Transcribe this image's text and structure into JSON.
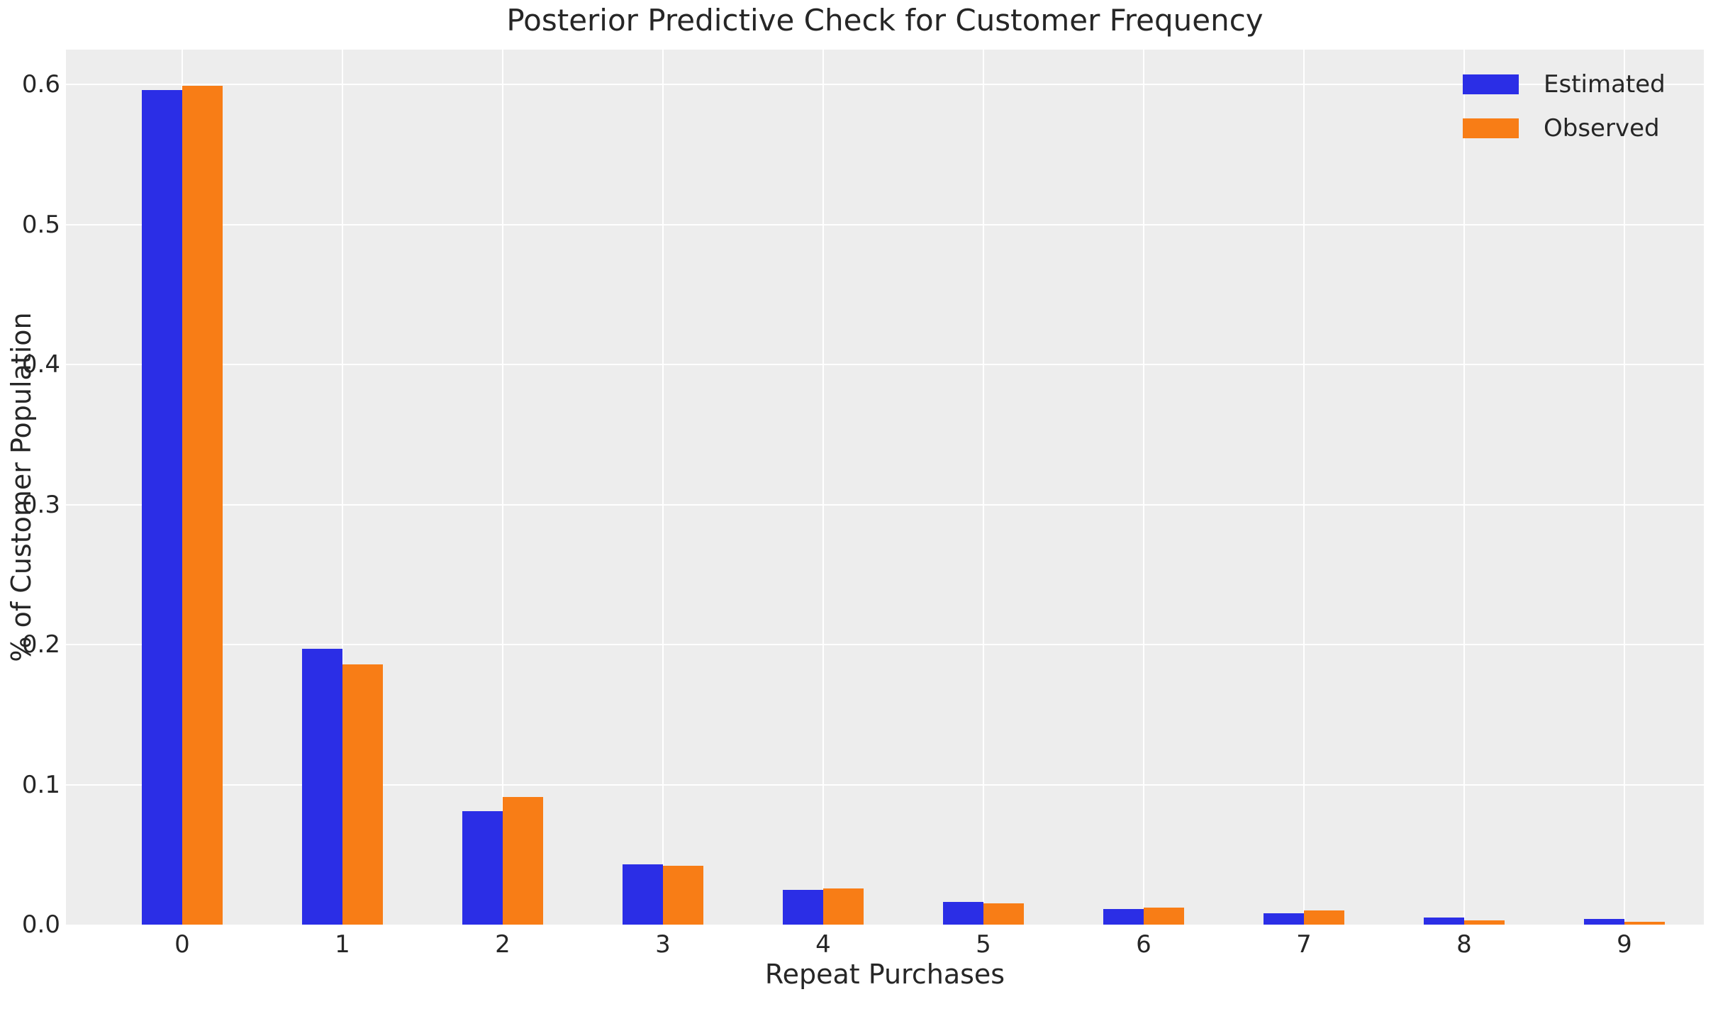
{
  "chart_data": {
    "type": "bar",
    "title": "Posterior Predictive Check for Customer Frequency",
    "xlabel": "Repeat Purchases",
    "ylabel": "% of Customer Population",
    "categories": [
      "0",
      "1",
      "2",
      "3",
      "4",
      "5",
      "6",
      "7",
      "8",
      "9"
    ],
    "series": [
      {
        "name": "Estimated",
        "color": "#2b2ee6",
        "values": [
          0.596,
          0.197,
          0.081,
          0.043,
          0.025,
          0.016,
          0.011,
          0.008,
          0.005,
          0.004
        ]
      },
      {
        "name": "Observed",
        "color": "#f87d16",
        "values": [
          0.599,
          0.186,
          0.091,
          0.042,
          0.026,
          0.015,
          0.012,
          0.01,
          0.003,
          0.002
        ]
      }
    ],
    "yticks": [
      {
        "value": 0.0,
        "label": "0.0"
      },
      {
        "value": 0.1,
        "label": "0.1"
      },
      {
        "value": 0.2,
        "label": "0.2"
      },
      {
        "value": 0.3,
        "label": "0.3"
      },
      {
        "value": 0.4,
        "label": "0.4"
      },
      {
        "value": 0.5,
        "label": "0.5"
      },
      {
        "value": 0.6,
        "label": "0.6"
      }
    ],
    "ylim": [
      0,
      0.625
    ],
    "grid": "on",
    "legend_position": "upper right",
    "plot_background": "#ededed",
    "grid_color": "#ffffff",
    "text_color": "#262626"
  }
}
